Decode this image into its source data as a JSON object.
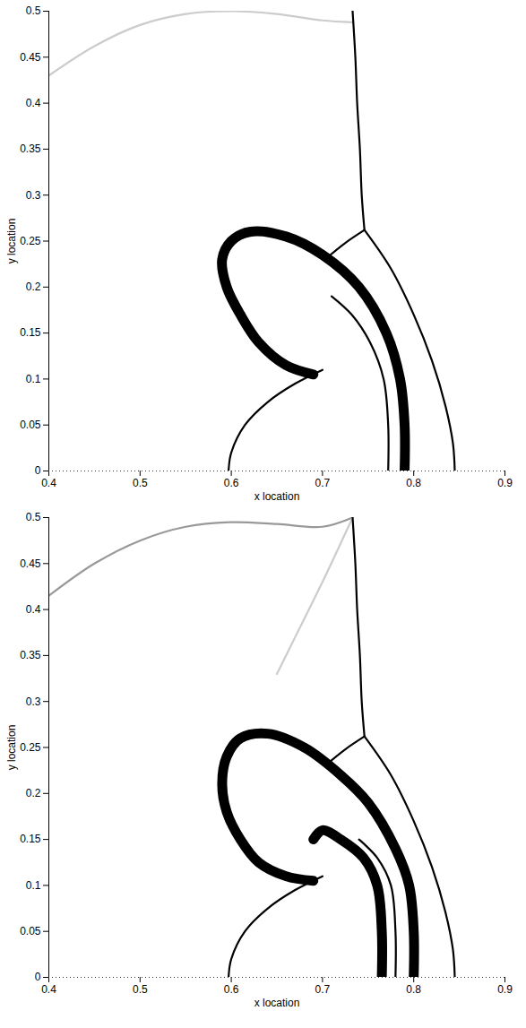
{
  "chart_data": [
    {
      "type": "line",
      "xlabel": "x location",
      "ylabel": "y location",
      "xlim": [
        0.4,
        0.9
      ],
      "ylim": [
        0,
        0.5
      ],
      "xticks": [
        0.4,
        0.5,
        0.6,
        0.7,
        0.8,
        0.9
      ],
      "yticks": [
        0,
        0.05,
        0.1,
        0.15,
        0.2,
        0.25,
        0.3,
        0.35,
        0.4,
        0.45,
        0.5
      ],
      "series": [
        {
          "color": "#cccccc",
          "line_style": "solid",
          "x": [
            0.4,
            0.45,
            0.5,
            0.55,
            0.6,
            0.65,
            0.7,
            0.733
          ],
          "values": [
            0.43,
            0.462,
            0.485,
            0.497,
            0.5,
            0.497,
            0.49,
            0.488
          ]
        },
        {
          "color": "#000000",
          "line_style": "solid",
          "x": [
            0.733,
            0.736,
            0.738,
            0.741,
            0.743,
            0.746
          ],
          "values": [
            0.5,
            0.45,
            0.4,
            0.35,
            0.3,
            0.262
          ]
        },
        {
          "color": "#000000",
          "line_style": "solid",
          "x": [
            0.746,
            0.775,
            0.8,
            0.82,
            0.835,
            0.843,
            0.845
          ],
          "values": [
            0.262,
            0.22,
            0.17,
            0.12,
            0.07,
            0.03,
            0
          ]
        },
        {
          "color": "#000000",
          "line_style": "solid",
          "x": [
            0.746,
            0.725,
            0.705
          ],
          "values": [
            0.262,
            0.248,
            0.232
          ]
        },
        {
          "color": "#000000",
          "line_style": "thick",
          "x": [
            0.79,
            0.79,
            0.785,
            0.77,
            0.74,
            0.7,
            0.66,
            0.62,
            0.6,
            0.59,
            0.595,
            0.61,
            0.63,
            0.66,
            0.69
          ],
          "values": [
            0,
            0.05,
            0.1,
            0.15,
            0.2,
            0.235,
            0.255,
            0.26,
            0.25,
            0.23,
            0.2,
            0.17,
            0.14,
            0.115,
            0.105
          ]
        },
        {
          "color": "#000000",
          "line_style": "solid",
          "x": [
            0.772,
            0.772,
            0.767,
            0.752,
            0.732,
            0.71
          ],
          "values": [
            0,
            0.05,
            0.1,
            0.14,
            0.17,
            0.19
          ]
        },
        {
          "color": "#000000",
          "line_style": "solid",
          "x": [
            0.597,
            0.6,
            0.615,
            0.64,
            0.67,
            0.7
          ],
          "values": [
            0,
            0.02,
            0.05,
            0.075,
            0.095,
            0.11
          ]
        }
      ]
    },
    {
      "type": "line",
      "xlabel": "x location",
      "ylabel": "y location",
      "xlim": [
        0.4,
        0.9
      ],
      "ylim": [
        0,
        0.5
      ],
      "xticks": [
        0.4,
        0.5,
        0.6,
        0.7,
        0.8,
        0.9
      ],
      "yticks": [
        0,
        0.05,
        0.1,
        0.15,
        0.2,
        0.25,
        0.3,
        0.35,
        0.4,
        0.45,
        0.5
      ],
      "series": [
        {
          "color": "#999999",
          "line_style": "solid",
          "x": [
            0.4,
            0.45,
            0.5,
            0.55,
            0.6,
            0.65,
            0.7,
            0.733
          ],
          "values": [
            0.415,
            0.45,
            0.475,
            0.49,
            0.495,
            0.493,
            0.49,
            0.5
          ]
        },
        {
          "color": "#cccccc",
          "line_style": "solid",
          "x": [
            0.733,
            0.7,
            0.67,
            0.65
          ],
          "values": [
            0.5,
            0.43,
            0.37,
            0.33
          ]
        },
        {
          "color": "#000000",
          "line_style": "solid",
          "x": [
            0.733,
            0.736,
            0.738,
            0.741,
            0.743,
            0.746
          ],
          "values": [
            0.5,
            0.45,
            0.4,
            0.35,
            0.3,
            0.262
          ]
        },
        {
          "color": "#000000",
          "line_style": "solid",
          "x": [
            0.746,
            0.775,
            0.8,
            0.82,
            0.835,
            0.843,
            0.845
          ],
          "values": [
            0.262,
            0.22,
            0.17,
            0.12,
            0.07,
            0.03,
            0
          ]
        },
        {
          "color": "#000000",
          "line_style": "solid",
          "x": [
            0.746,
            0.725,
            0.705
          ],
          "values": [
            0.262,
            0.248,
            0.232
          ]
        },
        {
          "color": "#000000",
          "line_style": "thick",
          "x": [
            0.8,
            0.8,
            0.795,
            0.78,
            0.75,
            0.72,
            0.68,
            0.64,
            0.61,
            0.595,
            0.59,
            0.595,
            0.61,
            0.63,
            0.66,
            0.69
          ],
          "values": [
            0,
            0.05,
            0.1,
            0.14,
            0.19,
            0.22,
            0.25,
            0.265,
            0.26,
            0.24,
            0.21,
            0.18,
            0.15,
            0.125,
            0.11,
            0.105
          ]
        },
        {
          "color": "#000000",
          "line_style": "thick",
          "x": [
            0.765,
            0.765,
            0.76,
            0.745,
            0.72,
            0.7,
            0.69
          ],
          "values": [
            0,
            0.05,
            0.1,
            0.13,
            0.15,
            0.16,
            0.15
          ]
        },
        {
          "color": "#000000",
          "line_style": "solid",
          "x": [
            0.78,
            0.78,
            0.775,
            0.76,
            0.74
          ],
          "values": [
            0,
            0.05,
            0.1,
            0.13,
            0.15
          ]
        },
        {
          "color": "#000000",
          "line_style": "solid",
          "x": [
            0.597,
            0.6,
            0.615,
            0.64,
            0.67,
            0.7
          ],
          "values": [
            0,
            0.02,
            0.05,
            0.075,
            0.095,
            0.11
          ]
        }
      ]
    }
  ]
}
